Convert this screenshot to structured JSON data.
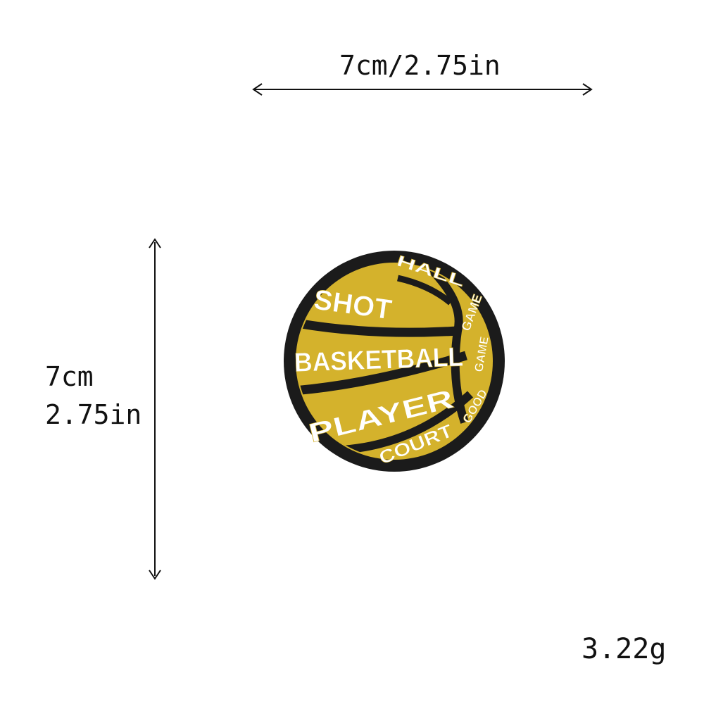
{
  "dimensions": {
    "width_label": "7cm/2.75in",
    "height_cm": "7cm",
    "height_in": "2.75in",
    "weight": "3.22g"
  },
  "product": {
    "type_icon": "basketball-patch-icon",
    "patch_words": {
      "shot": "SHOT",
      "basketball": "BASKETBALL",
      "player": "PLAYER",
      "court": "COURT",
      "hall": "HALL",
      "top_right": "GAME",
      "mid_right": "GAME",
      "low_right": "GOOD"
    },
    "colors": {
      "border": "#1b1b1b",
      "fill": "#d4b22c",
      "thread": "#ffffff"
    }
  }
}
